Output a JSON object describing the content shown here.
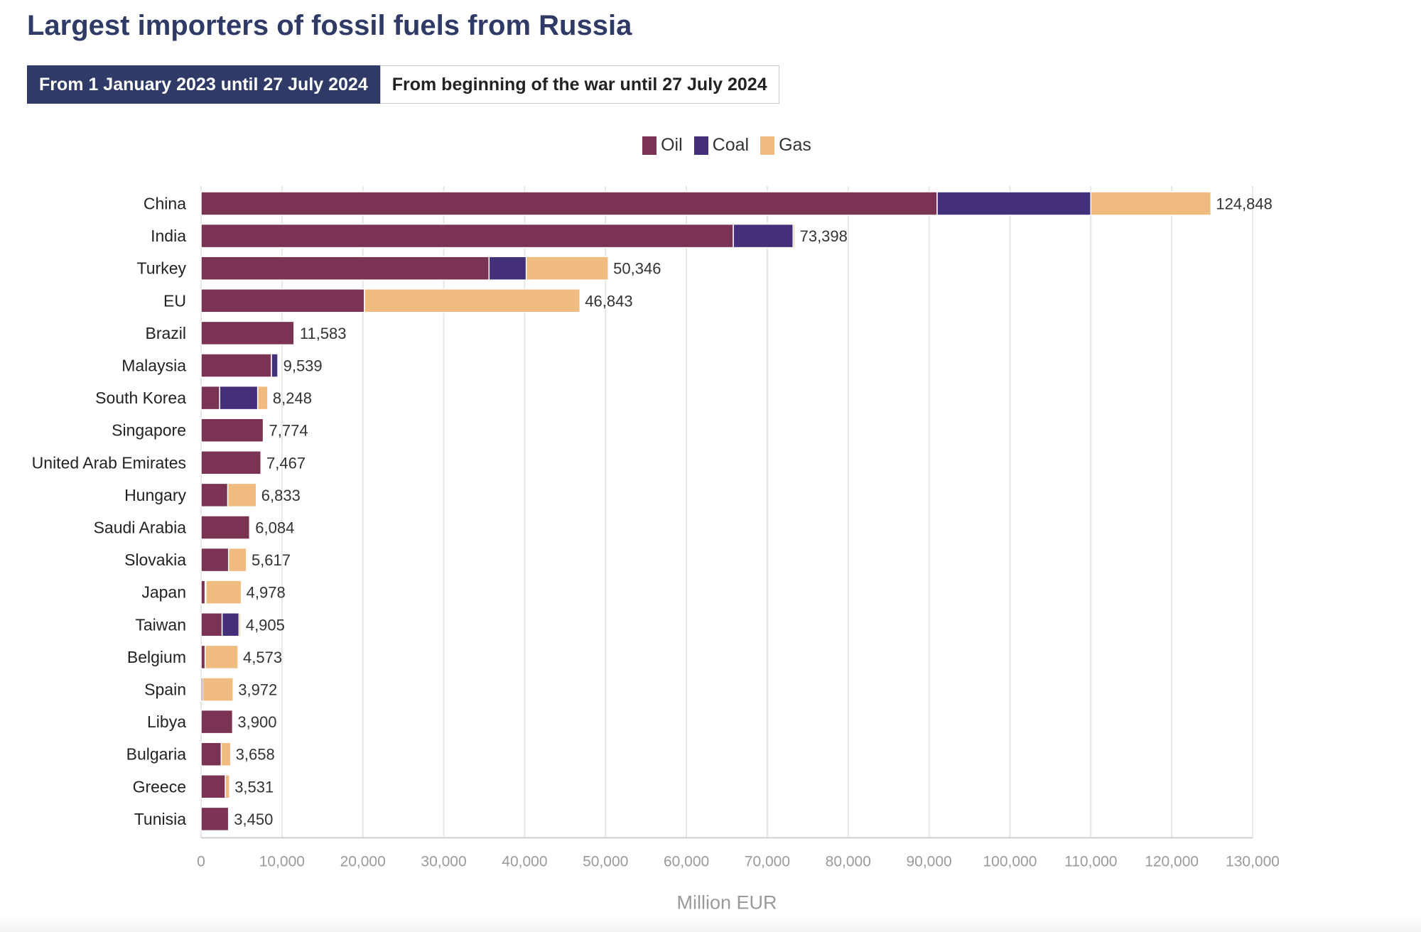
{
  "page": {
    "title": "Largest importers of fossil fuels from Russia",
    "toggles": [
      {
        "label": "From 1 January 2023 until 27 July 2024",
        "active": true
      },
      {
        "label": "From beginning of the war until 27 July 2024",
        "active": false
      }
    ]
  },
  "colors": {
    "oil": "#7a3353",
    "coal": "#44307a",
    "gas": "#efbb7e",
    "title": "#2f3a66",
    "grid": "#e6e6e6",
    "axis_text": "#9a9a9a",
    "label_text": "#222222"
  },
  "chart_data": {
    "type": "bar",
    "orientation": "horizontal",
    "stacked": true,
    "categories": [
      "China",
      "India",
      "Turkey",
      "EU",
      "Brazil",
      "Malaysia",
      "South Korea",
      "Singapore",
      "United Arab Emirates",
      "Hungary",
      "Saudi Arabia",
      "Slovakia",
      "Japan",
      "Taiwan",
      "Belgium",
      "Spain",
      "Libya",
      "Bulgaria",
      "Greece",
      "Tunisia"
    ],
    "series": [
      {
        "name": "Oil",
        "color": "#7a3353",
        "values": [
          91000,
          65800,
          35600,
          20200,
          11500,
          8700,
          2300,
          7700,
          7400,
          3300,
          6000,
          3400,
          500,
          2600,
          500,
          200,
          3900,
          2500,
          3000,
          3400
        ]
      },
      {
        "name": "Coal",
        "color": "#44307a",
        "values": [
          19000,
          7400,
          4600,
          0,
          0,
          800,
          4700,
          0,
          0,
          0,
          0,
          0,
          100,
          2100,
          0,
          0,
          0,
          0,
          0,
          0
        ]
      },
      {
        "name": "Gas",
        "color": "#efbb7e",
        "values": [
          14848,
          198,
          10146,
          26643,
          83,
          39,
          1248,
          74,
          67,
          3533,
          84,
          2217,
          4378,
          205,
          4073,
          3772,
          0,
          1158,
          531,
          50
        ]
      }
    ],
    "totals": [
      124848,
      73398,
      50346,
      46843,
      11583,
      9539,
      8248,
      7774,
      7467,
      6833,
      6084,
      5617,
      4978,
      4905,
      4573,
      3972,
      3900,
      3658,
      3531,
      3450
    ],
    "total_labels": [
      "124,848",
      "73,398",
      "50,346",
      "46,843",
      "11,583",
      "9,539",
      "8,248",
      "7,774",
      "7,467",
      "6,833",
      "6,084",
      "5,617",
      "4,978",
      "4,905",
      "4,573",
      "3,972",
      "3,900",
      "3,658",
      "3,531",
      "3,450"
    ],
    "xlim": [
      0,
      130000
    ],
    "xticks": [
      0,
      10000,
      20000,
      30000,
      40000,
      50000,
      60000,
      70000,
      80000,
      90000,
      100000,
      110000,
      120000,
      130000
    ],
    "xtick_labels": [
      "0",
      "10,000",
      "20,000",
      "30,000",
      "40,000",
      "50,000",
      "60,000",
      "70,000",
      "80,000",
      "90,000",
      "100,000",
      "110,000",
      "120,000",
      "130,000"
    ],
    "xlabel": "Million EUR",
    "grid": true,
    "legend_position": "top-center"
  }
}
